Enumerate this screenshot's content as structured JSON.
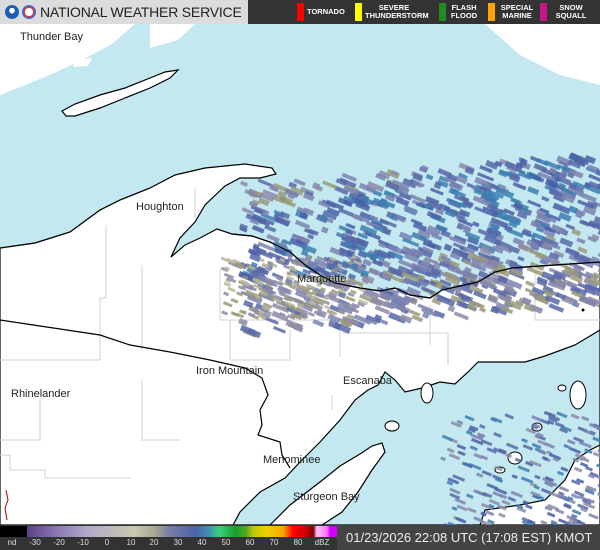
{
  "header": {
    "org": "NATIONAL WEATHER SERVICE",
    "warnings": [
      {
        "label": "TORNADO",
        "color": "#ff0000"
      },
      {
        "label": "SEVERE THUNDERSTORM",
        "color": "#ffff00"
      },
      {
        "label": "FLASH FLOOD",
        "color": "#228b22"
      },
      {
        "label": "SPECIAL MARINE",
        "color": "#ffa500"
      },
      {
        "label": "SNOW SQUALL",
        "color": "#c71585"
      }
    ]
  },
  "map": {
    "water_color": "#c3e8ef",
    "land_color": "#ffffff",
    "cities": [
      "Thunder Bay",
      "Houghton",
      "Marquette",
      "Iron Mountain",
      "Rhinelander",
      "Escanaba",
      "Menominee",
      "Sturgeon Bay"
    ]
  },
  "legend": {
    "ticks": [
      "nd",
      "-30",
      "-20",
      "-10",
      "0",
      "10",
      "20",
      "30",
      "40",
      "50",
      "60",
      "70",
      "80",
      "dBZ"
    ]
  },
  "timestamp": "01/23/2026 22:08 UTC (17:08 EST) KMOT"
}
